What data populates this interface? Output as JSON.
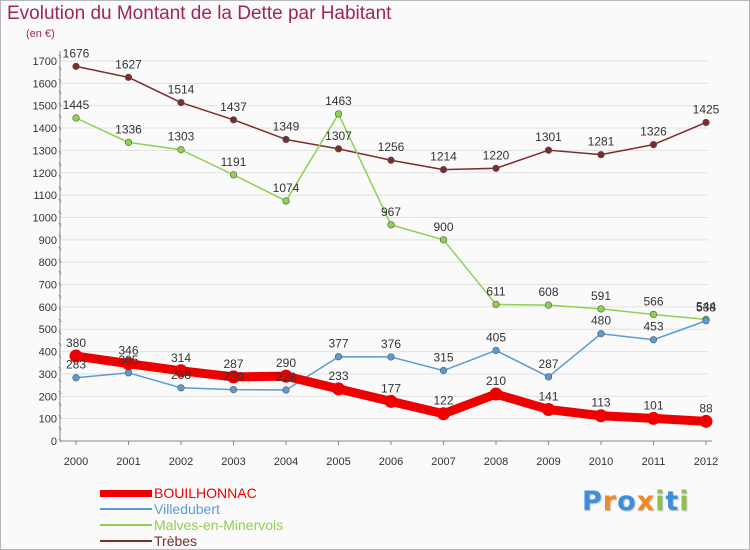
{
  "header": {
    "title": "Evolution du Montant de la Dette par Habitant",
    "subtitle": "(en €)"
  },
  "colors": {
    "title": "#a2245c",
    "axis": "#888888",
    "tick_text": "#333333",
    "grid": "#e0e0e0"
  },
  "chart_data": {
    "type": "line",
    "title": "Evolution du Montant de la Dette par Habitant",
    "subtitle": "(en €)",
    "x": [
      "2000",
      "2001",
      "2002",
      "2003",
      "2004",
      "2005",
      "2006",
      "2007",
      "2008",
      "2009",
      "2010",
      "2011",
      "2012"
    ],
    "yticks": [
      0,
      100,
      200,
      300,
      400,
      500,
      600,
      700,
      800,
      900,
      1000,
      1100,
      1200,
      1300,
      1400,
      1500,
      1600,
      1700
    ],
    "ylim": [
      0,
      1700
    ],
    "grid": true,
    "legend_position": "bottom-left",
    "series": [
      {
        "name": "Trèbes",
        "color": "#7b2c2c",
        "values": [
          1676,
          1627,
          1514,
          1437,
          1349,
          1307,
          1256,
          1214,
          1220,
          1301,
          1281,
          1326,
          1425
        ],
        "labels": [
          "1676",
          "1627",
          "1514",
          "1437",
          "1349",
          "1307",
          "1256",
          "1214",
          "1220",
          "1301",
          "1281",
          "1326",
          "1425"
        ]
      },
      {
        "name": "Malves-en-Minervois",
        "color": "#8fd14f",
        "values": [
          1445,
          1336,
          1303,
          1191,
          1074,
          1463,
          967,
          900,
          611,
          608,
          591,
          566,
          544
        ],
        "labels": [
          "1445",
          "1336",
          "1303",
          "1191",
          "1074",
          "1463",
          "967",
          "900",
          "611",
          "608",
          "591",
          "566",
          "544"
        ]
      },
      {
        "name": "Villedubert",
        "color": "#5b9bd5",
        "values": [
          283,
          305,
          238,
          230,
          228,
          377,
          376,
          315,
          405,
          287,
          480,
          453,
          538
        ],
        "labels": [
          "283",
          "305",
          "238",
          "230",
          "228",
          "377",
          "376",
          "315",
          "405",
          "287",
          "480",
          "453",
          "538"
        ]
      },
      {
        "name": "BOUILHONNAC",
        "color": "#ee0000",
        "values": [
          380,
          346,
          314,
          287,
          290,
          233,
          177,
          122,
          210,
          141,
          113,
          101,
          88
        ],
        "labels": [
          "380",
          "346",
          "314",
          "287",
          "290",
          "233",
          "177",
          "122",
          "210",
          "141",
          "113",
          "101",
          "88"
        ]
      }
    ]
  },
  "legend": {
    "items": [
      {
        "label": "BOUILHONNAC",
        "color": "#ee0000"
      },
      {
        "label": "Villedubert",
        "color": "#5b9bd5"
      },
      {
        "label": "Malves-en-Minervois",
        "color": "#8fd14f"
      },
      {
        "label": "Trèbes",
        "color": "#7b2c2c"
      }
    ]
  },
  "logo": {
    "letters": [
      {
        "ch": "P",
        "color": "#3c8fd8"
      },
      {
        "ch": "r",
        "color": "#f08a24"
      },
      {
        "ch": "o",
        "color": "#3c8fd8"
      },
      {
        "ch": "x",
        "color": "#f08a24"
      },
      {
        "ch": "i",
        "color": "#8bc34a"
      },
      {
        "ch": "t",
        "color": "#3c8fd8"
      },
      {
        "ch": "i",
        "color": "#8bc34a"
      }
    ]
  }
}
